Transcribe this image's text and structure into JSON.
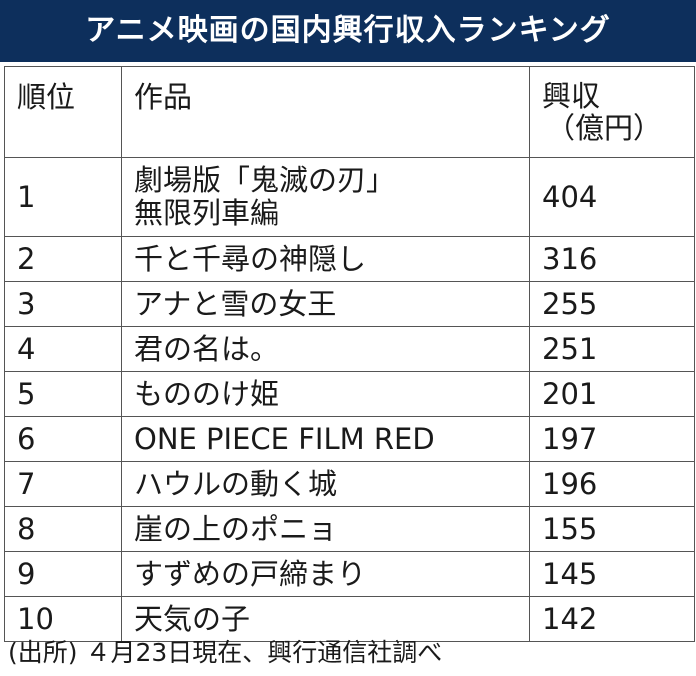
{
  "title": "アニメ映画の国内興行収入ランキング",
  "header": {
    "rank": "順位",
    "work": "作品",
    "revenue_line1": "興収",
    "revenue_line2": "（億円）"
  },
  "rows": [
    {
      "rank": "1",
      "title_line1": "劇場版「鬼滅の刃」",
      "title_line2": "無限列車編",
      "revenue": "404"
    },
    {
      "rank": "2",
      "title": "千と千尋の神隠し",
      "revenue": "316"
    },
    {
      "rank": "3",
      "title": "アナと雪の女王",
      "revenue": "255"
    },
    {
      "rank": "4",
      "title": "君の名は。",
      "revenue": "251"
    },
    {
      "rank": "5",
      "title": "もののけ姫",
      "revenue": "201"
    },
    {
      "rank": "6",
      "title": "ONE PIECE FILM RED",
      "revenue": "197"
    },
    {
      "rank": "7",
      "title": "ハウルの動く城",
      "revenue": "196"
    },
    {
      "rank": "8",
      "title": "崖の上のポニョ",
      "revenue": "155"
    },
    {
      "rank": "9",
      "title": "すずめの戸締まり",
      "revenue": "145"
    },
    {
      "rank": "10",
      "title": "天気の子",
      "revenue": "142"
    }
  ],
  "source": "(出所) ４月23日現在、興行通信社調べ",
  "colors": {
    "title_background": "#0d2f5c",
    "title_text": "#ffffff",
    "border": "#555555"
  }
}
